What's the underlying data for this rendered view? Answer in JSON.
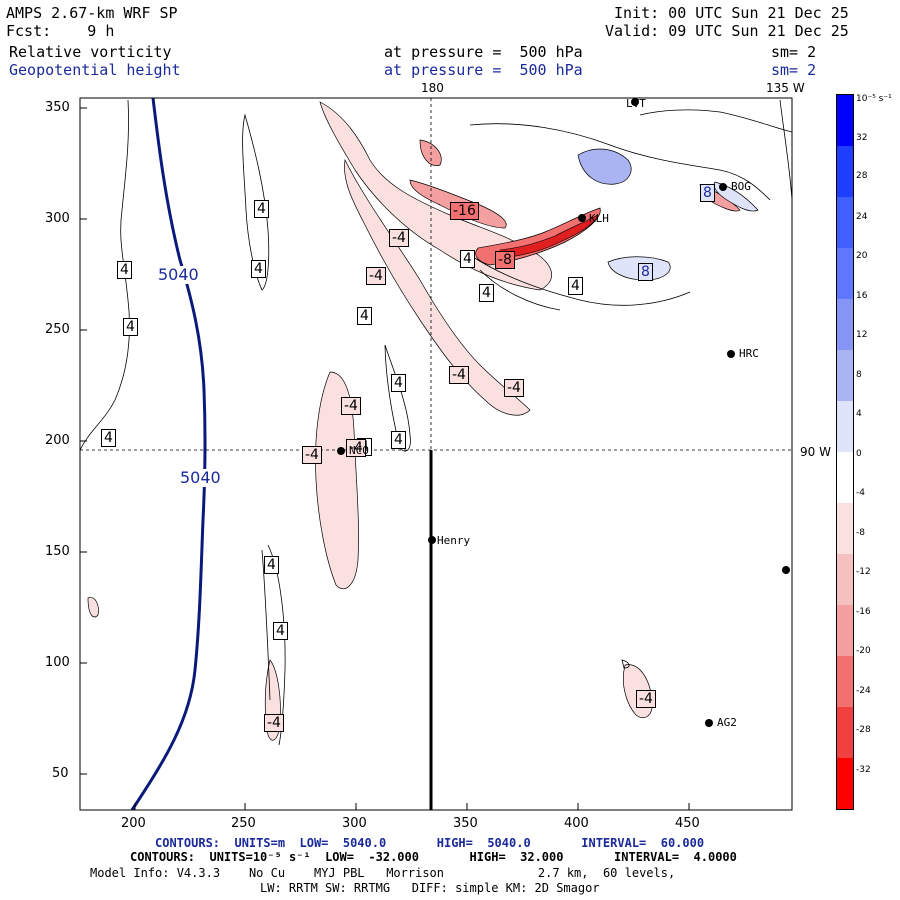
{
  "header": {
    "model": "AMPS 2.67-km WRF SP",
    "init": "Init: 00 UTC Sun 21 Dec 25",
    "fcst": "Fcst:    9 h",
    "valid": "Valid: 09 UTC Sun 21 Dec 25",
    "field1": "Relative vorticity",
    "field1_level": "at pressure =  500 hPa",
    "field1_sm": "sm= 2",
    "field2": "Geopotential height",
    "field2_level": "at pressure =  500 hPa",
    "field2_sm": "sm= 2"
  },
  "map": {
    "x_ticks": [
      "200",
      "250",
      "300",
      "350",
      "400",
      "450"
    ],
    "y_ticks": [
      "50",
      "100",
      "150",
      "200",
      "250",
      "300",
      "350"
    ],
    "meridian_labels": {
      "top_180": "180",
      "top_135w": "135 W",
      "right_90w": "90 W"
    },
    "height_contour_labels": [
      "5040",
      "5040"
    ],
    "vort_labels": [
      "4",
      "4",
      "4",
      "4",
      "4",
      "4",
      "4",
      "4",
      "4",
      "4",
      "4",
      "4",
      "4",
      "4",
      "-4",
      "-4",
      "-4",
      "-4",
      "-4",
      "-4",
      "-4",
      "-4",
      "-4",
      "-4",
      "-8",
      "-16",
      "8",
      "8"
    ],
    "stations": [
      "LVT",
      "BOG",
      "KLH",
      "HRC",
      "NCO",
      "Henry",
      "AG2"
    ],
    "colors": {
      "height_contour": "#0a1a7a",
      "positive_vort": "#1f3fff",
      "negative_vort": "#ff2020"
    }
  },
  "colorbar": {
    "unit": "10⁻⁵ s⁻¹",
    "labels": [
      "32",
      "28",
      "24",
      "20",
      "16",
      "12",
      "8",
      "4",
      "0",
      "-4",
      "-8",
      "-12",
      "-16",
      "-20",
      "-24",
      "-28",
      "-32"
    ]
  },
  "footer": {
    "line1": "CONTOURS:  UNITS=m  LOW=  5040.0       HIGH=  5040.0       INTERVAL=  60.000",
    "line2": "CONTOURS:  UNITS=10⁻⁵ s⁻¹  LOW=  -32.000       HIGH=  32.000       INTERVAL=  4.0000",
    "line3": "Model Info: V4.3.3    No Cu    MYJ PBL   Morrison             2.7 km,  60 levels,",
    "line4": "LW: RRTM SW: RRTMG   DIFF: simple KM: 2D Smagor"
  }
}
